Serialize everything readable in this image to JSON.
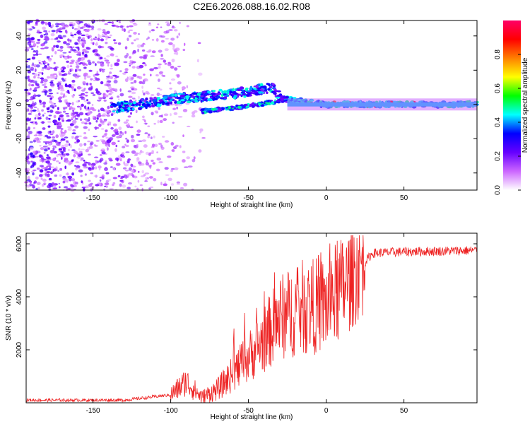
{
  "title": "C2E6.2026.088.16.02.R08",
  "chart_data": [
    {
      "type": "heatmap",
      "xlabel": "Height of straight line (km)",
      "ylabel": "Frequency (Hz)",
      "xlim": [
        -193,
        97
      ],
      "ylim": [
        -50,
        49
      ],
      "xticks": [
        -150,
        -100,
        -50,
        0,
        50
      ],
      "yticks": [
        -40,
        -20,
        0,
        20,
        40
      ],
      "colorbar": {
        "label": "Normalized spectral amplitude",
        "range": [
          0,
          1
        ],
        "ticks": [
          0.0,
          0.2,
          0.4,
          0.6,
          0.8
        ],
        "colormap": [
          "#ffffff",
          "#cc66ff",
          "#6600ff",
          "#0000ff",
          "#00ffff",
          "#00ff00",
          "#ffff00",
          "#ff8000",
          "#ff0000",
          "#ff0066"
        ]
      },
      "trace": {
        "description_points": [
          {
            "x": -135,
            "y": -2
          },
          {
            "x": -90,
            "y": 4
          },
          {
            "x": -60,
            "y": 6
          },
          {
            "x": -35,
            "y": 10
          },
          {
            "x": -28,
            "y": 3
          },
          {
            "x": 0,
            "y": 0
          },
          {
            "x": 95,
            "y": 0
          }
        ],
        "lower_branch": [
          {
            "x": -80,
            "y": -4
          },
          {
            "x": -50,
            "y": -1
          },
          {
            "x": -30,
            "y": 2
          }
        ]
      }
    },
    {
      "type": "line",
      "xlabel": "Height of straight line (km)",
      "ylabel": "SNR (10 * v/v)",
      "xlim": [
        -193,
        97
      ],
      "ylim": [
        0,
        6400
      ],
      "xticks": [
        -150,
        -100,
        -50,
        0,
        50
      ],
      "yticks": [
        2000,
        4000,
        6000
      ],
      "color": "#ee2222",
      "envelope": [
        {
          "x": -193,
          "y": 100
        },
        {
          "x": -130,
          "y": 100
        },
        {
          "x": -100,
          "y": 300
        },
        {
          "x": -90,
          "y": 800
        },
        {
          "x": -80,
          "y": 200
        },
        {
          "x": -70,
          "y": 500
        },
        {
          "x": -55,
          "y": 1400
        },
        {
          "x": -40,
          "y": 2400
        },
        {
          "x": -30,
          "y": 3200
        },
        {
          "x": -15,
          "y": 3600
        },
        {
          "x": 0,
          "y": 3700
        },
        {
          "x": 10,
          "y": 4300
        },
        {
          "x": 20,
          "y": 5000
        },
        {
          "x": 30,
          "y": 5650
        },
        {
          "x": 50,
          "y": 5700
        },
        {
          "x": 97,
          "y": 5750
        }
      ]
    }
  ]
}
